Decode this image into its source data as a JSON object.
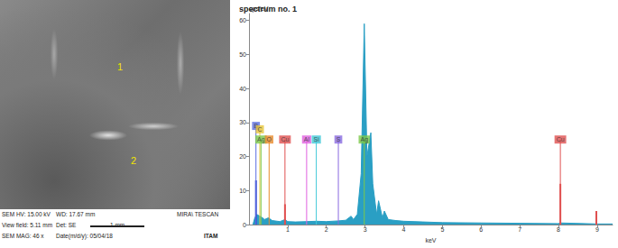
{
  "sem_image": {
    "markers": [
      "1",
      "2"
    ],
    "footer": [
      [
        "SEM HV: 15.00 kV",
        "WD: 17.67 mm",
        "MIRA\\ TESCAN"
      ],
      [
        "View field: 5.11 mm",
        "Det: SE",
        "1 mm"
      ],
      [
        "SEM MAG: 46 x",
        "Date(m/d/y): 05/04/18",
        "ITAM"
      ]
    ]
  },
  "chart_data": {
    "type": "area",
    "title": "spectrum no. 1",
    "x_label": "keV",
    "y_label": "cps/eV",
    "color": "#2a9fc4",
    "x": [
      0.1,
      0.15,
      0.2,
      0.28,
      0.35,
      0.4,
      0.5,
      0.6,
      0.8,
      0.93,
      1.0,
      1.2,
      1.49,
      1.74,
      2.0,
      2.3,
      2.5,
      2.64,
      2.7,
      2.8,
      2.9,
      2.98,
      3.05,
      3.15,
      3.2,
      3.3,
      3.35,
      3.45,
      3.5,
      3.6,
      3.8,
      4.0,
      4.5,
      5.0,
      6.0,
      7.0,
      8.0,
      8.05,
      9.0,
      9.4
    ],
    "values": [
      0,
      2,
      3,
      2.5,
      2,
      1.5,
      2,
      1.2,
      0.9,
      1.5,
      0.9,
      0.8,
      0.9,
      1.0,
      0.9,
      1.1,
      1.3,
      2.5,
      1.5,
      3,
      15,
      59,
      20,
      27,
      12,
      3,
      7,
      2,
      4,
      1.5,
      1.2,
      1,
      0.8,
      0.6,
      0.5,
      0.4,
      0.3,
      0.5,
      0.2,
      0.2
    ],
    "xlim": [
      0,
      9.4
    ],
    "xticks": [
      1,
      2,
      3,
      4,
      5,
      6,
      7,
      8,
      9
    ],
    "ylim": [
      0,
      62
    ],
    "yticks": [
      0,
      10,
      20,
      30,
      40,
      50,
      60
    ],
    "grid": false,
    "elements": [
      {
        "label": "B",
        "energy": 0.18,
        "level": 29,
        "color": "#5b6ee1"
      },
      {
        "label": "C",
        "energy": 0.28,
        "level": 28,
        "color": "#e8c63a"
      },
      {
        "label": "Ag",
        "energy": 0.31,
        "level": 25,
        "color": "#7cc84a"
      },
      {
        "label": "O",
        "energy": 0.52,
        "level": 25,
        "color": "#e88a2a"
      },
      {
        "label": "Cu",
        "energy": 0.93,
        "level": 25,
        "color": "#e05050"
      },
      {
        "label": "Al",
        "energy": 1.49,
        "level": 25,
        "color": "#e060e0"
      },
      {
        "label": "Si",
        "energy": 1.74,
        "level": 25,
        "color": "#40c8d8"
      },
      {
        "label": "S",
        "energy": 2.31,
        "level": 25,
        "color": "#8a6ae0"
      },
      {
        "label": "Ag",
        "energy": 2.98,
        "level": 25,
        "color": "#7cc84a"
      },
      {
        "label": "Cu",
        "energy": 8.05,
        "level": 25,
        "color": "#e05050"
      }
    ],
    "peaks": [
      {
        "energy": 0.18,
        "height": 13,
        "color": "#3a4ad0"
      },
      {
        "energy": 0.93,
        "height": 6,
        "color": "#e05050"
      },
      {
        "energy": 8.05,
        "height": 12,
        "color": "#e05050"
      },
      {
        "energy": 8.98,
        "height": 4,
        "color": "#e05050"
      }
    ]
  }
}
